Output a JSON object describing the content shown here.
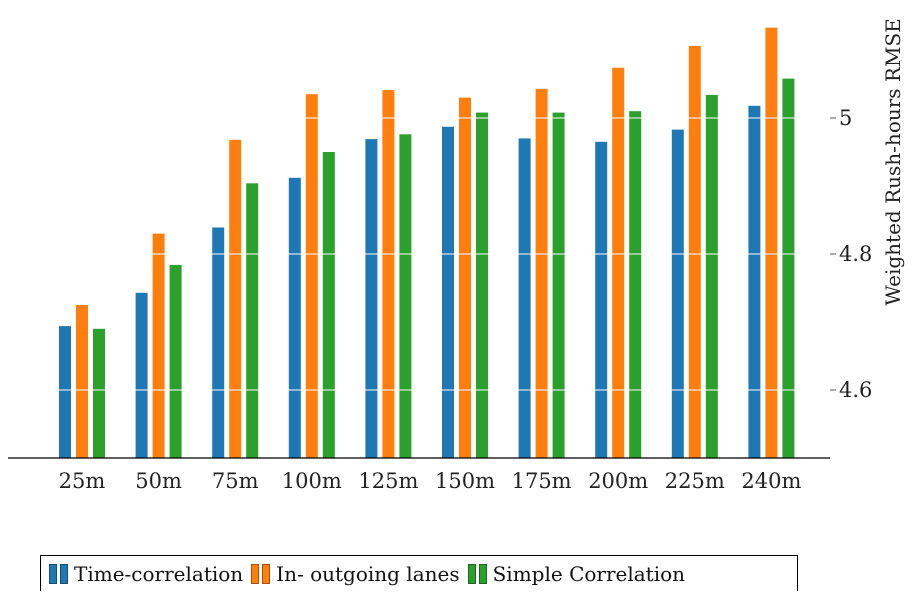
{
  "chart_data": {
    "type": "bar",
    "categories": [
      "25m",
      "50m",
      "75m",
      "100m",
      "125m",
      "150m",
      "175m",
      "200m",
      "225m",
      "240m"
    ],
    "series": [
      {
        "name": "Time-correlation",
        "color": "#1f77b4",
        "values": [
          4.694,
          4.743,
          4.839,
          4.912,
          4.969,
          4.987,
          4.97,
          4.965,
          4.983,
          5.018
        ]
      },
      {
        "name": "In- outgoing lanes",
        "color": "#ff7f0e",
        "values": [
          4.725,
          4.83,
          4.968,
          5.035,
          5.041,
          5.03,
          5.043,
          5.074,
          5.106,
          5.133
        ]
      },
      {
        "name": "Simple Correlation",
        "color": "#2ca02c",
        "values": [
          4.69,
          4.784,
          4.904,
          4.95,
          4.976,
          5.008,
          5.008,
          5.01,
          5.034,
          5.058
        ]
      }
    ],
    "ylabel": "Weighted Rush-hours RMSE",
    "ylim": [
      4.5,
      5.2
    ],
    "yticks": [
      4.6,
      4.8,
      5,
      5.2
    ],
    "grid": true,
    "y_axis_position": "right",
    "legend_position": "bottom"
  }
}
